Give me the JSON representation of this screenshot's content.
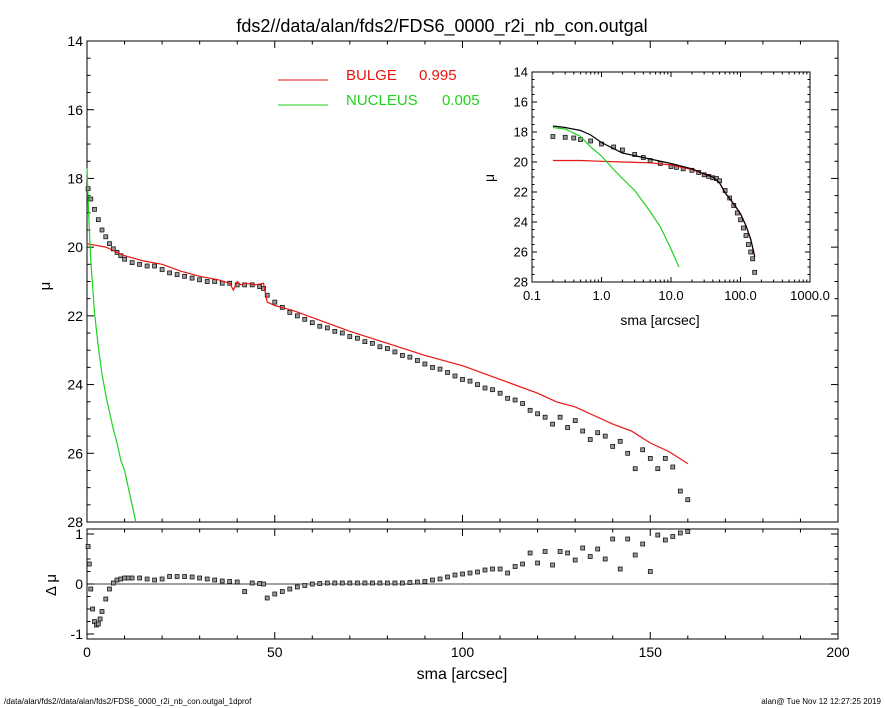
{
  "header": {
    "title": "fds2//data/alan/fds2/FDS6_0000_r2i_nb_con.outgal"
  },
  "footer": {
    "left": "/data/alan/fds2//data/alan/fds2/FDS6_0000_r2i_nb_con.outgal_1dprof",
    "right": "alan@  Tue Nov 12 12:27:25 2019"
  },
  "colors": {
    "bulge": "#e8140f",
    "nucleus": "#1ed21e",
    "data": "#000000",
    "data_fill": "#9a9a9a"
  },
  "chart_data": [
    {
      "id": "main",
      "type": "scatter",
      "ylabel": "μ",
      "xlabel": "",
      "xlim": [
        0,
        200
      ],
      "ylim": [
        28,
        14
      ],
      "y_inverted": true,
      "xticks": [
        0,
        50,
        100,
        150,
        200
      ],
      "yticks": [
        14,
        16,
        18,
        20,
        22,
        24,
        26,
        28
      ],
      "legend": {
        "placement": "top-center",
        "entries": [
          {
            "label": "BULGE",
            "value": "0.995",
            "color": "#e8140f"
          },
          {
            "label": "NUCLEUS",
            "value": "0.005",
            "color": "#1ed21e"
          }
        ]
      },
      "series": [
        {
          "name": "data",
          "style": "squares",
          "x": [
            0.3,
            1,
            2,
            3,
            4,
            5,
            6,
            7,
            8,
            9,
            10,
            12,
            14,
            16,
            18,
            20,
            22,
            24,
            26,
            28,
            30,
            32,
            34,
            36,
            38,
            40,
            42,
            44,
            46,
            47,
            48,
            50,
            52,
            54,
            56,
            58,
            60,
            62,
            64,
            66,
            68,
            70,
            72,
            74,
            76,
            78,
            80,
            82,
            84,
            86,
            88,
            90,
            92,
            94,
            96,
            98,
            100,
            102,
            104,
            106,
            108,
            110,
            112,
            114,
            116,
            118,
            120,
            122,
            124,
            126,
            128,
            130,
            132,
            134,
            136,
            138,
            140,
            142,
            144,
            146,
            148,
            150,
            152,
            154,
            156,
            158,
            160
          ],
          "y": [
            18.3,
            18.6,
            18.9,
            19.2,
            19.5,
            19.7,
            19.9,
            20.05,
            20.15,
            20.25,
            20.35,
            20.45,
            20.5,
            20.55,
            20.55,
            20.65,
            20.75,
            20.8,
            20.85,
            20.9,
            20.95,
            21.0,
            21.0,
            21.05,
            21.05,
            21.1,
            21.1,
            21.1,
            21.15,
            21.2,
            21.4,
            21.6,
            21.75,
            21.9,
            22.0,
            22.1,
            22.2,
            22.3,
            22.35,
            22.45,
            22.5,
            22.6,
            22.65,
            22.75,
            22.8,
            22.9,
            22.95,
            23.05,
            23.15,
            23.2,
            23.3,
            23.4,
            23.5,
            23.55,
            23.65,
            23.75,
            23.85,
            23.9,
            24.0,
            24.1,
            24.15,
            24.25,
            24.4,
            24.45,
            24.55,
            24.75,
            24.85,
            24.95,
            25.15,
            24.95,
            25.25,
            25.05,
            25.35,
            25.6,
            25.4,
            25.5,
            25.8,
            25.65,
            26.0,
            26.45,
            25.9,
            26.15,
            26.45,
            26.15,
            26.4,
            27.1,
            27.35
          ]
        },
        {
          "name": "BULGE",
          "style": "line",
          "x": [
            0,
            5,
            10,
            15,
            20,
            25,
            30,
            35,
            38,
            39,
            40,
            41,
            42,
            45,
            47,
            48,
            50,
            55,
            60,
            70,
            80,
            90,
            100,
            110,
            120,
            125,
            130,
            135,
            140,
            145,
            150,
            155,
            160
          ],
          "y": [
            19.9,
            20.0,
            20.25,
            20.4,
            20.5,
            20.7,
            20.85,
            20.95,
            21.05,
            21.25,
            21.0,
            21.1,
            21.05,
            21.1,
            21.05,
            21.6,
            21.7,
            21.85,
            22.05,
            22.45,
            22.8,
            23.15,
            23.45,
            23.85,
            24.25,
            24.5,
            24.65,
            24.9,
            25.15,
            25.35,
            25.7,
            25.95,
            26.3
          ]
        },
        {
          "name": "NUCLEUS",
          "style": "line",
          "x": [
            0,
            0.5,
            1,
            2,
            3,
            4,
            5,
            6,
            7,
            8,
            9,
            10,
            11,
            12,
            13
          ],
          "y": [
            17.7,
            19.2,
            20.4,
            21.9,
            22.9,
            23.7,
            24.3,
            24.8,
            25.3,
            25.7,
            26.2,
            26.5,
            27.0,
            27.5,
            28.0
          ]
        }
      ]
    },
    {
      "id": "residual",
      "type": "scatter",
      "ylabel": "Δ μ",
      "xlabel": "sma [arcsec]",
      "xlim": [
        0,
        200
      ],
      "ylim": [
        -1.1,
        1.1
      ],
      "xticks": [
        0,
        50,
        100,
        150,
        200
      ],
      "yticks": [
        1,
        0,
        -1
      ],
      "zero_line": true,
      "series": [
        {
          "name": "residual",
          "style": "squares",
          "x": [
            0.3,
            0.6,
            1,
            1.5,
            2,
            2.5,
            3,
            3.5,
            4,
            5,
            6,
            7,
            8,
            9,
            10,
            11,
            12,
            14,
            16,
            18,
            20,
            22,
            24,
            26,
            28,
            30,
            32,
            34,
            36,
            38,
            40,
            42,
            44,
            46,
            47,
            48,
            50,
            52,
            54,
            56,
            58,
            60,
            62,
            64,
            66,
            68,
            70,
            72,
            74,
            76,
            78,
            80,
            82,
            84,
            86,
            88,
            90,
            92,
            94,
            96,
            98,
            100,
            102,
            104,
            106,
            108,
            110,
            112,
            114,
            116,
            118,
            120,
            122,
            124,
            126,
            128,
            130,
            132,
            134,
            136,
            138,
            140,
            142,
            144,
            146,
            148,
            150,
            152,
            154,
            156,
            158,
            160
          ],
          "y": [
            0.75,
            0.4,
            -0.1,
            -0.5,
            -0.75,
            -0.82,
            -0.8,
            -0.7,
            -0.55,
            -0.3,
            -0.1,
            0.02,
            0.08,
            0.1,
            0.12,
            0.12,
            0.12,
            0.12,
            0.1,
            0.08,
            0.1,
            0.15,
            0.15,
            0.15,
            0.14,
            0.12,
            0.1,
            0.08,
            0.06,
            0.05,
            0.04,
            -0.15,
            0.02,
            0.01,
            0.0,
            -0.28,
            -0.2,
            -0.15,
            -0.1,
            -0.06,
            -0.03,
            0.0,
            0.01,
            0.02,
            0.02,
            0.02,
            0.02,
            0.02,
            0.02,
            0.02,
            0.02,
            0.02,
            0.02,
            0.02,
            0.03,
            0.04,
            0.05,
            0.08,
            0.1,
            0.14,
            0.18,
            0.2,
            0.22,
            0.24,
            0.28,
            0.3,
            0.3,
            0.22,
            0.35,
            0.4,
            0.62,
            0.42,
            0.65,
            0.38,
            0.65,
            0.62,
            0.48,
            0.72,
            0.55,
            0.7,
            0.5,
            0.9,
            0.3,
            0.9,
            0.58,
            0.8,
            0.25,
            0.98,
            0.88,
            0.95,
            1.02,
            1.05
          ]
        }
      ]
    },
    {
      "id": "inset",
      "type": "scatter",
      "ylabel": "μ",
      "xlabel": "sma [arcsec]",
      "x_scale": "log",
      "xlim": [
        0.1,
        1000
      ],
      "ylim": [
        28,
        14
      ],
      "y_inverted": true,
      "xtick_labels": [
        "0.1",
        "1.0",
        "10.0",
        "100.0",
        "1000.0"
      ],
      "xticks": [
        0.1,
        1,
        10,
        100,
        1000
      ],
      "yticks": [
        14,
        16,
        18,
        20,
        22,
        24,
        26,
        28
      ],
      "series": [
        {
          "name": "data",
          "style": "squares",
          "x": [
            0.2,
            0.3,
            0.4,
            0.5,
            0.7,
            1,
            1.5,
            2,
            3,
            4,
            5,
            7,
            10,
            12,
            15,
            20,
            25,
            30,
            35,
            40,
            45,
            50,
            60,
            70,
            80,
            90,
            100,
            110,
            120,
            130,
            140,
            150,
            160
          ],
          "y": [
            18.3,
            18.35,
            18.4,
            18.5,
            18.6,
            18.8,
            19.0,
            19.2,
            19.5,
            19.7,
            19.9,
            20.1,
            20.3,
            20.35,
            20.45,
            20.55,
            20.7,
            20.85,
            20.95,
            21.05,
            21.1,
            21.25,
            21.9,
            22.4,
            22.9,
            23.4,
            23.85,
            24.4,
            24.9,
            25.5,
            26.0,
            26.45,
            27.35
          ]
        },
        {
          "name": "BULGE",
          "style": "line",
          "x": [
            0.2,
            0.5,
            1,
            2,
            5,
            10,
            20,
            30,
            40,
            50,
            60,
            80,
            100,
            120,
            140,
            160
          ],
          "y": [
            19.9,
            19.9,
            19.95,
            20.0,
            20.05,
            20.2,
            20.5,
            20.8,
            21.0,
            21.4,
            22.05,
            22.8,
            23.45,
            24.25,
            25.15,
            26.3
          ]
        },
        {
          "name": "NUCLEUS",
          "style": "line",
          "x": [
            0.2,
            0.3,
            0.5,
            0.7,
            1,
            1.5,
            2,
            3,
            5,
            7,
            10,
            13
          ],
          "y": [
            17.7,
            17.8,
            18.3,
            19.0,
            19.6,
            20.5,
            21.1,
            21.9,
            23.3,
            24.3,
            25.8,
            27.0
          ]
        },
        {
          "name": "total",
          "style": "line",
          "x": [
            0.2,
            0.3,
            0.5,
            0.7,
            1,
            2,
            5,
            10,
            20,
            30,
            40,
            50,
            60,
            80,
            100,
            120,
            140,
            160
          ],
          "y": [
            17.6,
            17.7,
            17.9,
            18.2,
            18.7,
            19.4,
            19.8,
            20.1,
            20.45,
            20.8,
            21.0,
            21.4,
            22.05,
            22.8,
            23.45,
            24.25,
            25.15,
            26.3
          ]
        }
      ]
    }
  ]
}
